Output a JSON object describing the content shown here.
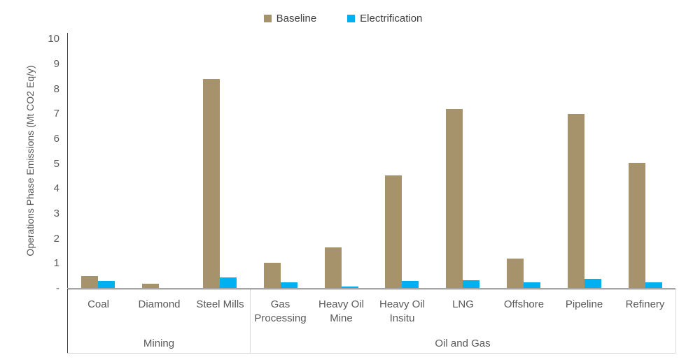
{
  "chart": {
    "ylabel": "Operations Phase Emissions (Mt CO2 Eq/y)",
    "legend": [
      {
        "label": "Baseline",
        "color": "#A6936B"
      },
      {
        "label": "Electrification",
        "color": "#00B0F0"
      }
    ]
  },
  "chart_data": {
    "type": "bar",
    "title": "",
    "ylabel": "Operations Phase Emissions (Mt CO2 Eq/y)",
    "xlabel": "",
    "ylim": [
      0,
      10.25
    ],
    "yticks": [
      0,
      1,
      2,
      3,
      4,
      5,
      6,
      7,
      8,
      9,
      10
    ],
    "ytick_labels": [
      "-",
      "1",
      "2",
      "3",
      "4",
      "5",
      "6",
      "7",
      "8",
      "9",
      "10"
    ],
    "grid": false,
    "legend_position": "top-center",
    "categories": [
      "Coal",
      "Diamond",
      "Steel Mills",
      "Gas Processing",
      "Heavy Oil Mine",
      "Heavy Oil Insitu",
      "LNG",
      "Offshore",
      "Pipeline",
      "Refinery"
    ],
    "groups": [
      {
        "label": "Mining",
        "span": [
          0,
          2
        ]
      },
      {
        "label": "Oil and Gas",
        "span": [
          3,
          9
        ]
      }
    ],
    "series": [
      {
        "name": "Baseline",
        "color": "#A6936B",
        "values": [
          0.5,
          0.2,
          8.4,
          1.05,
          1.65,
          4.55,
          7.2,
          1.2,
          7.0,
          5.05
        ]
      },
      {
        "name": "Electrification",
        "color": "#00B0F0",
        "values": [
          0.3,
          0,
          0.45,
          0.25,
          0.08,
          0.3,
          0.35,
          0.25,
          0.4,
          0.25
        ]
      }
    ]
  }
}
